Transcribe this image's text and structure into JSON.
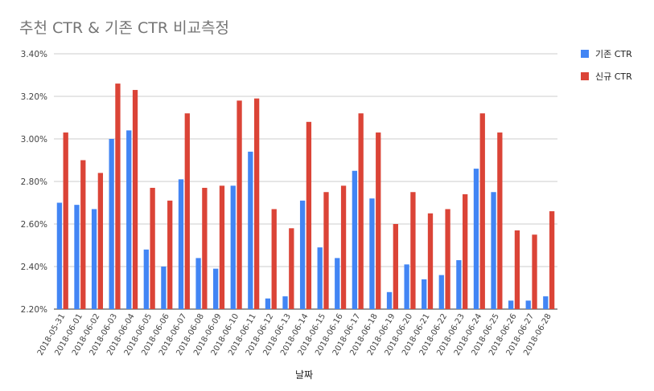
{
  "chart_data": {
    "type": "bar",
    "title": "추천 CTR & 기존 CTR 비교측정",
    "xlabel": "날짜",
    "ylabel": "",
    "ylim": [
      2.2,
      3.4
    ],
    "y_ticks": [
      "2.20%",
      "2.40%",
      "2.60%",
      "2.80%",
      "3.00%",
      "3.20%",
      "3.40%"
    ],
    "grid": true,
    "legend_position": "right",
    "categories": [
      "2018-05-31",
      "2018-06-01",
      "2018-06-02",
      "2018-06-03",
      "2018-06-04",
      "2018-06-05",
      "2018-06-06",
      "2018-06-07",
      "2018-06-08",
      "2018-06-09",
      "2018-06-10",
      "2018-06-11",
      "2018-06-12",
      "2018-06-13",
      "2018-06-14",
      "2018-06-15",
      "2018-06-16",
      "2018-06-17",
      "2018-06-18",
      "2018-06-19",
      "2018-06-20",
      "2018-06-21",
      "2018-06-22",
      "2018-06-23",
      "2018-06-24",
      "2018-06-25",
      "2018-06-26",
      "2018-06-27",
      "2018-06-28"
    ],
    "series": [
      {
        "name": "기존 CTR",
        "color": "#4285f4",
        "values": [
          2.7,
          2.69,
          2.67,
          3.0,
          3.04,
          2.48,
          2.4,
          2.81,
          2.44,
          2.39,
          2.78,
          2.94,
          2.25,
          2.26,
          2.71,
          2.49,
          2.44,
          2.85,
          2.72,
          2.28,
          2.41,
          2.34,
          2.36,
          2.43,
          2.86,
          2.75,
          2.24,
          2.24,
          2.26
        ]
      },
      {
        "name": "신규 CTR",
        "color": "#db4437",
        "values": [
          3.03,
          2.9,
          2.84,
          3.26,
          3.23,
          2.77,
          2.71,
          3.12,
          2.77,
          2.78,
          3.18,
          3.19,
          2.67,
          2.58,
          3.08,
          2.75,
          2.78,
          3.12,
          3.03,
          2.6,
          2.75,
          2.65,
          2.67,
          2.74,
          3.12,
          3.03,
          2.57,
          2.55,
          2.66
        ]
      }
    ]
  }
}
